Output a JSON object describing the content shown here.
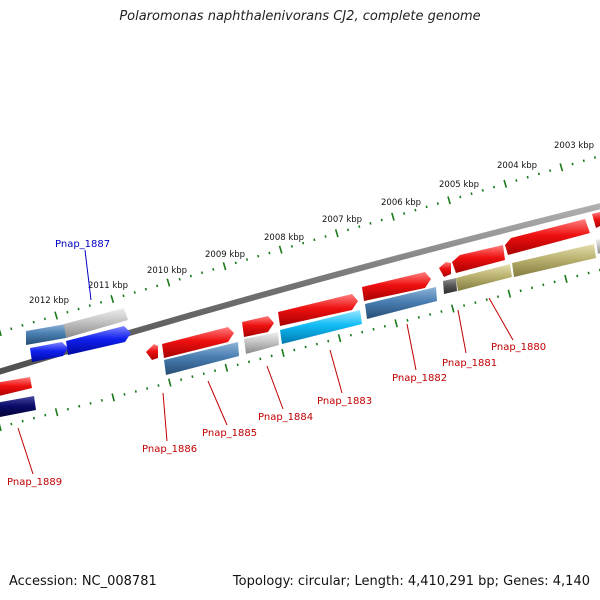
{
  "title": "Polaromonas naphthalenivorans CJ2, complete genome",
  "footer": {
    "accession": "Accession: NC_008781",
    "topology": "Topology: circular; Length: 4,410,291 bp; Genes: 4,140"
  },
  "kbp_ticks": [
    "2003 kbp",
    "2004 kbp",
    "2005 kbp",
    "2006 kbp",
    "2007 kbp",
    "2008 kbp",
    "2009 kbp",
    "2010 kbp",
    "2011 kbp",
    "2012 kbp"
  ],
  "gene_labels": [
    "Pnap_1887",
    "Pnap_1889",
    "Pnap_1886",
    "Pnap_1885",
    "Pnap_1884",
    "Pnap_1883",
    "Pnap_1882",
    "Pnap_1881",
    "Pnap_1880"
  ],
  "colors": {
    "red": "#e00000",
    "steelblue": "#3d72a6",
    "lightgray": "#bdbdbd",
    "blue": "#0a17e8",
    "navy": "#06065c",
    "cyan": "#00b4f0",
    "olive": "#b5ad6a",
    "darkgray": "#555555",
    "backbone": "#7a7a7a",
    "tick": "#1a7a1a"
  }
}
